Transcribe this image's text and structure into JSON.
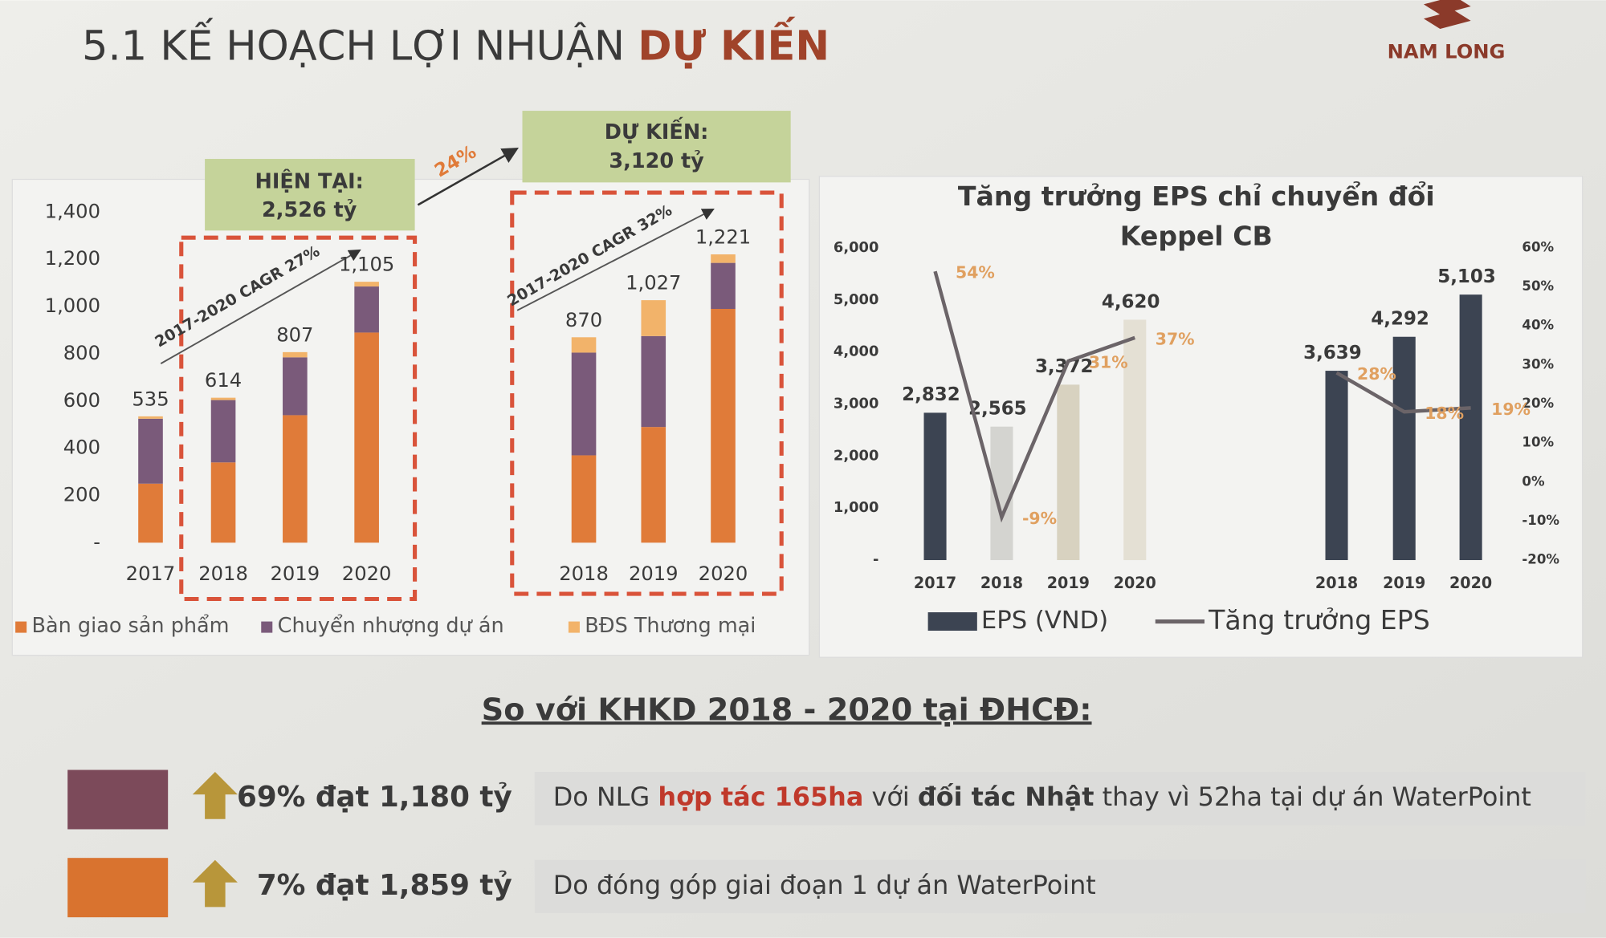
{
  "title": {
    "main": "5.1 KẾ HOẠCH LỢI NHUẬN ",
    "highlight": "DỰ KIẾN"
  },
  "logo": "NAM LONG",
  "chart_data": [
    {
      "type": "stacked-bar",
      "categories": [
        "2017",
        "2018",
        "2019",
        "2020",
        "2018",
        "2019",
        "2020"
      ],
      "series": [
        {
          "name": "Bàn giao sản phẩm",
          "color": "#e07b39",
          "values": [
            250,
            340,
            540,
            890,
            370,
            490,
            990
          ]
        },
        {
          "name": "Chuyển nhượng dự án",
          "color": "#7a5a7a",
          "values": [
            275,
            264,
            245,
            195,
            435,
            385,
            195
          ]
        },
        {
          "name": "BĐS Thương mại",
          "color": "#f2b36a",
          "values": [
            10,
            10,
            22,
            20,
            65,
            152,
            36
          ]
        }
      ],
      "totals": [
        535,
        614,
        807,
        1105,
        870,
        1027,
        1221
      ],
      "total_labels": [
        "535",
        "614",
        "807",
        "1,105",
        "870",
        "1,027",
        "1,221"
      ],
      "ylim": [
        0,
        1400
      ],
      "yticks": [
        {
          "value": 0,
          "label": "-"
        },
        200,
        400,
        600,
        800,
        {
          "value": 1000,
          "label": "1,000"
        },
        {
          "value": 1200,
          "label": "1,200"
        },
        {
          "value": 1400,
          "label": "1,400"
        }
      ],
      "annotations": {
        "current_heading": "HIỆN TẠI:",
        "current_value": "2,526 tỷ",
        "planned_heading": "DỰ KIẾN:",
        "planned_value": "3,120 tỷ",
        "growth": "24%",
        "cagr_current": "2017-2020 CAGR 27%",
        "cagr_planned": "2017-2020 CAGR 32%"
      }
    },
    {
      "type": "bar-line",
      "title": [
        "Tăng trưởng EPS chỉ chuyển đổi",
        "Keppel CB"
      ],
      "categories": [
        "2017",
        "2018",
        "2019",
        "2020",
        null,
        "2018",
        "2019",
        "2020"
      ],
      "series": [
        {
          "name": "EPS (VND)",
          "color": "#3c4452",
          "colors": [
            "#3c4452",
            "#d4d4d0",
            "#d8d2c0",
            "#e4e0d4",
            null,
            "#3c4452",
            "#3c4452",
            "#3c4452"
          ],
          "values": [
            2832,
            2565,
            3372,
            4620,
            null,
            3639,
            4292,
            5103
          ],
          "value_labels": [
            "2,832",
            "2,565",
            "3,372",
            "4,620",
            null,
            "3,639",
            "4,292",
            "5,103"
          ]
        },
        {
          "name": "Tăng trưởng EPS",
          "type": "line",
          "axis": "y2",
          "color": "#6b6468",
          "label_color": "#e0a060",
          "values": [
            54,
            -9,
            31,
            37,
            null,
            28,
            18,
            19
          ],
          "value_labels": [
            "54%",
            "-9%",
            "31%",
            "37%",
            null,
            "28%",
            "18%",
            "19%"
          ]
        }
      ],
      "ylim": [
        0,
        6000
      ],
      "yticks": [
        {
          "value": 0,
          "label": "-"
        },
        {
          "value": 1000,
          "label": "1,000"
        },
        {
          "value": 2000,
          "label": "2,000"
        },
        {
          "value": 3000,
          "label": "3,000"
        },
        {
          "value": 4000,
          "label": "4,000"
        },
        {
          "value": 5000,
          "label": "5,000"
        },
        {
          "value": 6000,
          "label": "6,000"
        }
      ],
      "y2lim": [
        -20,
        60
      ],
      "y2ticks": [
        {
          "value": -20,
          "label": "-20%"
        },
        {
          "value": -10,
          "label": "-10%"
        },
        {
          "value": 0,
          "label": "0%"
        },
        {
          "value": 10,
          "label": "10%"
        },
        {
          "value": 20,
          "label": "20%"
        },
        {
          "value": 30,
          "label": "30%"
        },
        {
          "value": 40,
          "label": "40%"
        },
        {
          "value": 50,
          "label": "50%"
        },
        {
          "value": 60,
          "label": "60%"
        }
      ]
    }
  ],
  "comparison": {
    "heading": "So với KHKD 2018 - 2020 tại ĐHCĐ:",
    "rows": [
      {
        "color": "#7c4a5a",
        "result": "69% đạt 1,180 tỷ",
        "reason": [
          {
            "text": "Do NLG "
          },
          {
            "text": "hợp tác 165ha",
            "color": "#c0392b",
            "bold": true
          },
          {
            "text": " với "
          },
          {
            "text": "đối tác Nhật",
            "bold": true
          },
          {
            "text": " thay vì 52ha tại dự án WaterPoint"
          }
        ]
      },
      {
        "color": "#d9732f",
        "result": "7% đạt 1,859 tỷ",
        "reason": [
          {
            "text": "Do đóng góp giai đoạn 1 dự án WaterPoint"
          }
        ]
      }
    ]
  }
}
